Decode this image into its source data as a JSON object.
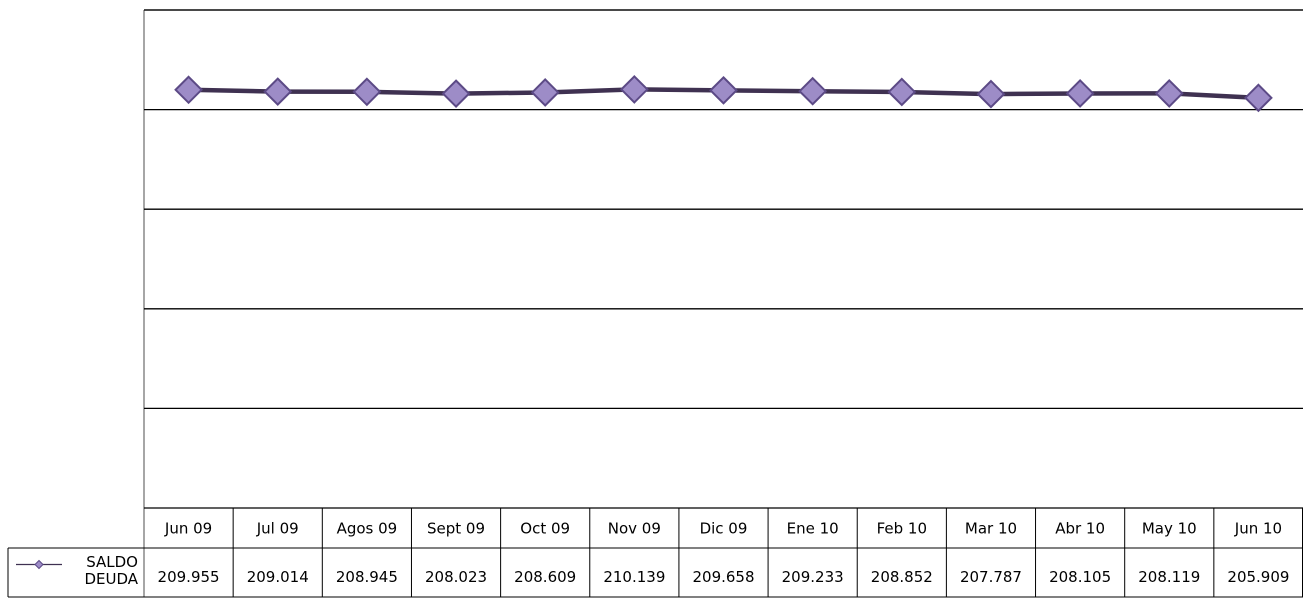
{
  "chart_data": {
    "type": "line",
    "categories": [
      "Jun 09",
      "Jul 09",
      "Agos 09",
      "Sept 09",
      "Oct 09",
      "Nov 09",
      "Dic 09",
      "Ene 10",
      "Feb 10",
      "Mar 10",
      "Abr 10",
      "May 10",
      "Jun 10"
    ],
    "series": [
      {
        "name": "SALDO DEUDA",
        "color": "#3f3151",
        "marker_color": "#9d8cc7",
        "values": [
          209.955,
          209.014,
          208.945,
          208.023,
          208.609,
          210.139,
          209.658,
          209.233,
          208.852,
          207.787,
          208.105,
          208.119,
          205.909
        ]
      }
    ],
    "ylim": [
      0,
      250
    ],
    "yticks": [
      0,
      50,
      100,
      150,
      200,
      250
    ],
    "grid": true,
    "data_table": true
  }
}
